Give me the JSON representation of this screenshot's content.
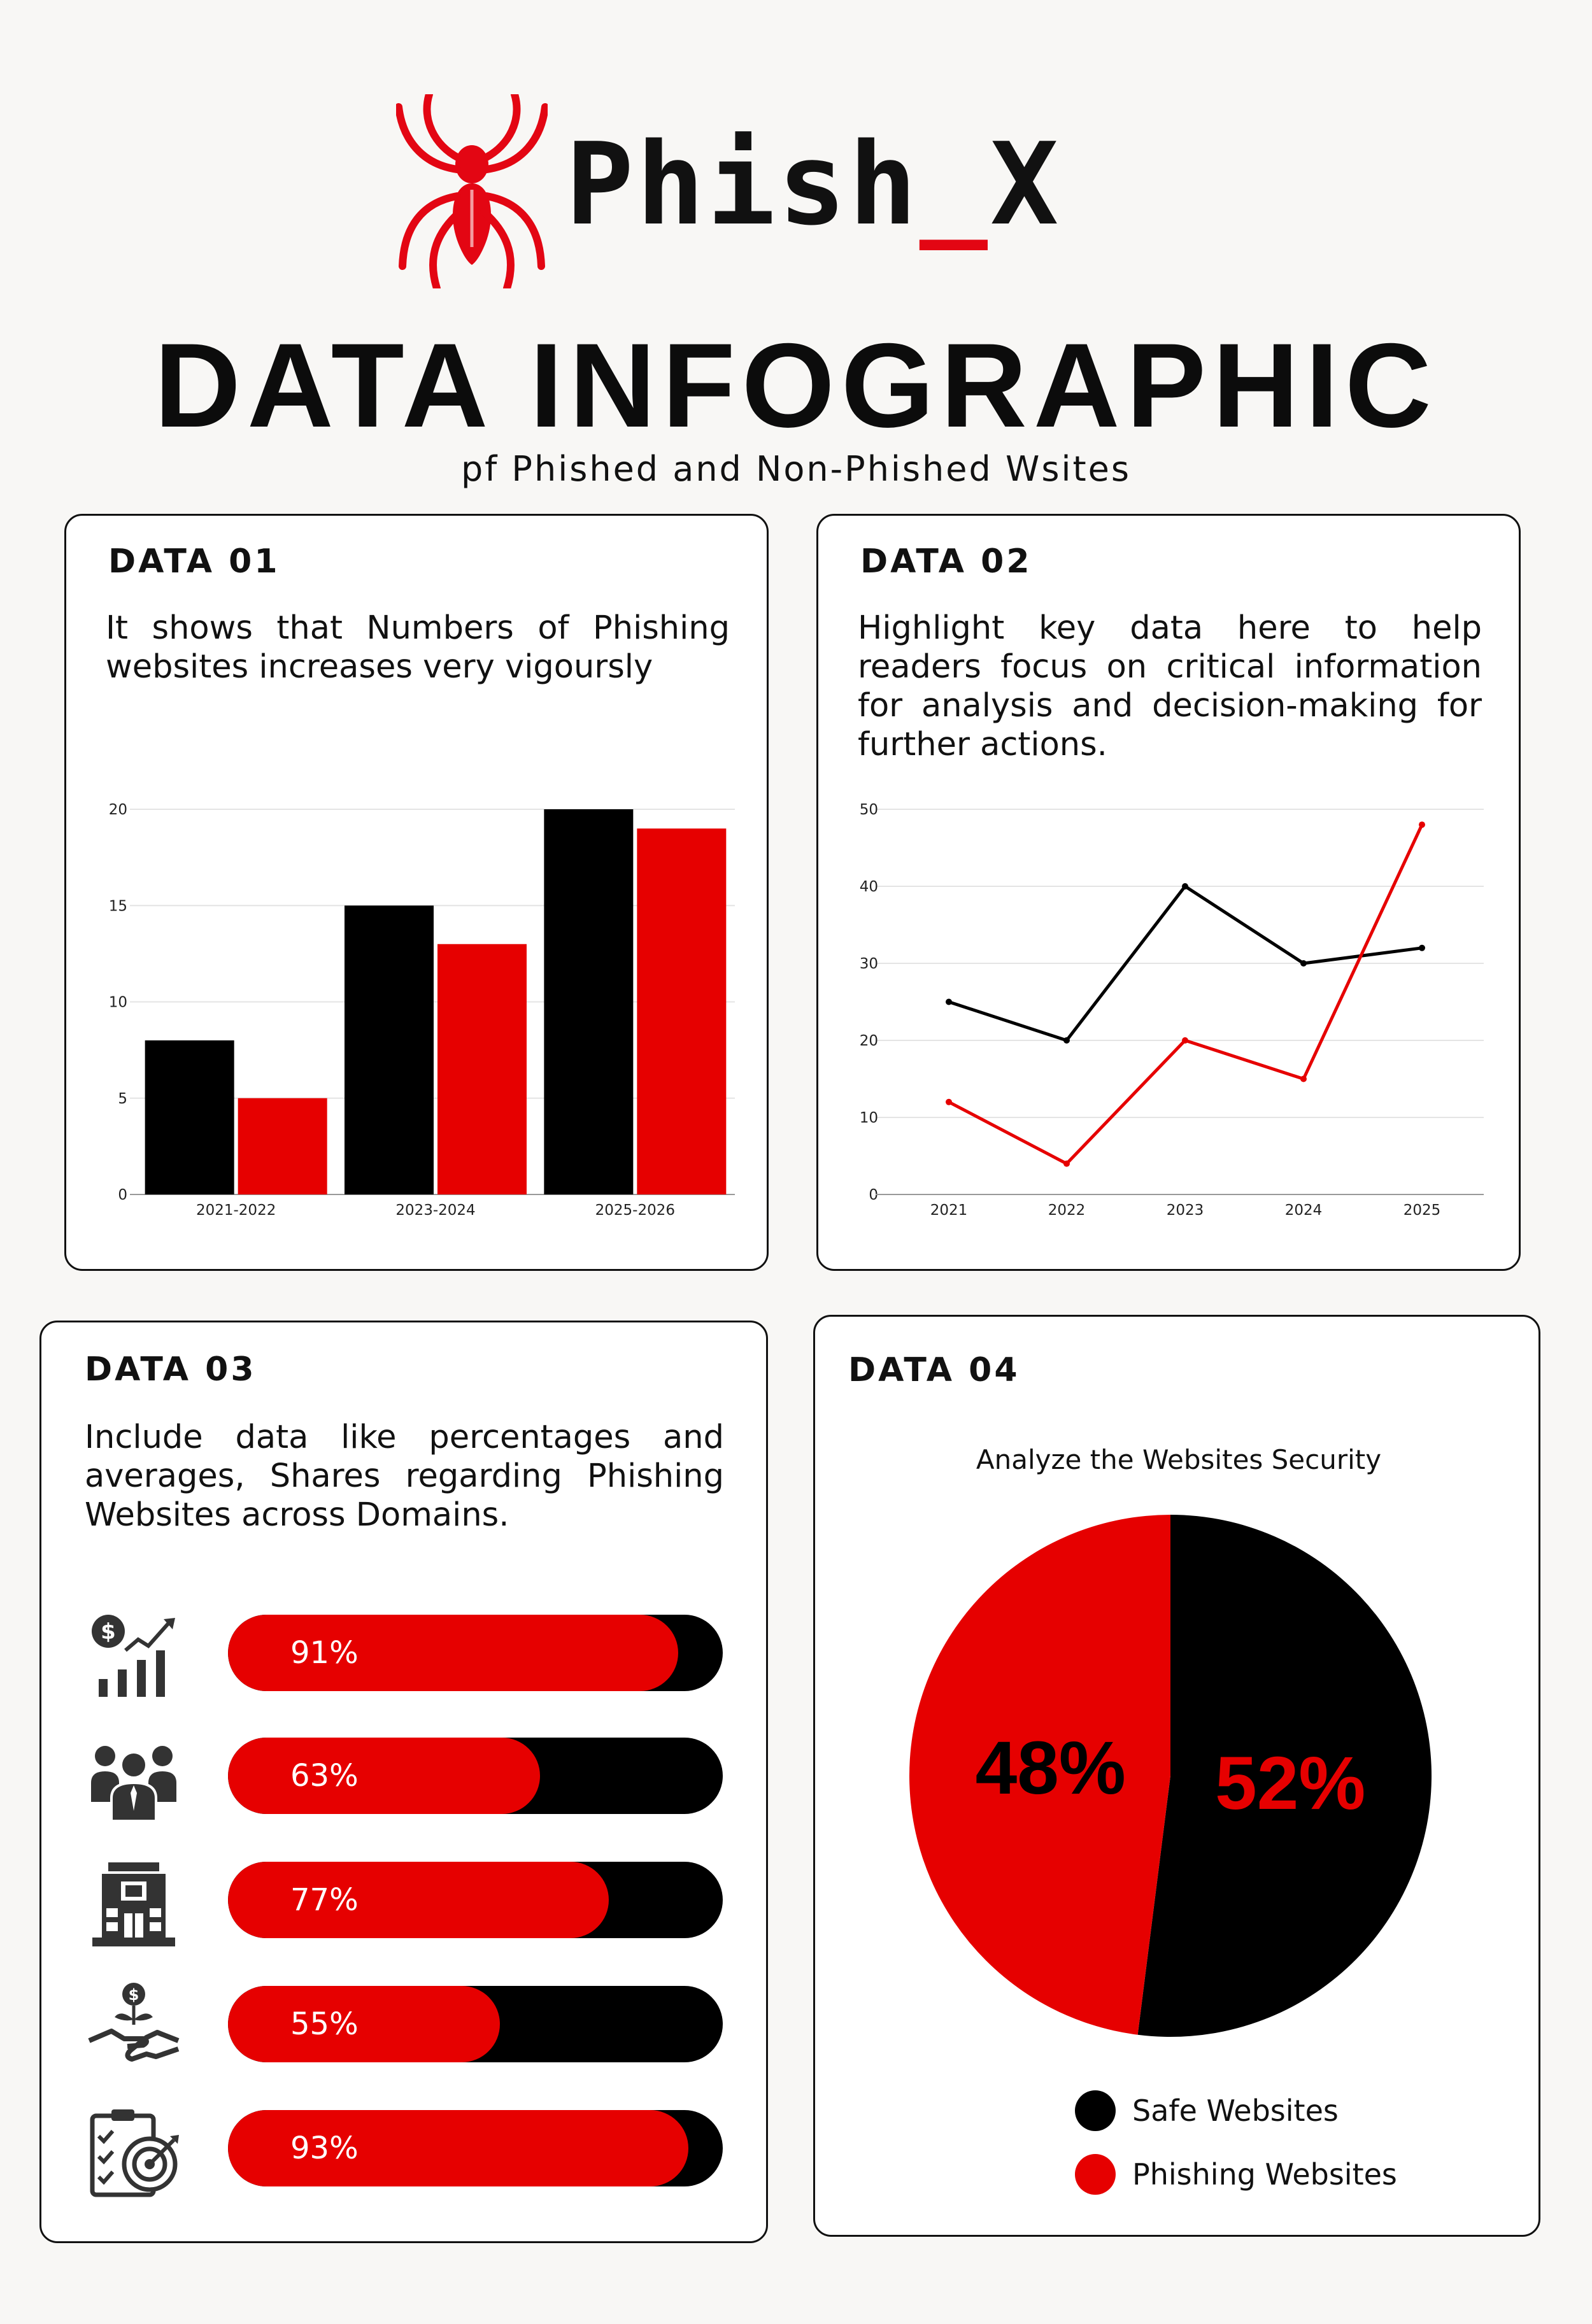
{
  "brand": {
    "name_main": "Phish",
    "name_underscore": "_",
    "name_x": "X",
    "logo_icon": "spider-icon",
    "accent": "#e30613"
  },
  "header": {
    "title": "DATA INFOGRAPHIC",
    "subtitle": "pf Phished and Non-Phished Wsites"
  },
  "cards": [
    {
      "title": "DATA 01",
      "description": "It shows that Numbers of Phishing websites increases very vigoursly"
    },
    {
      "title": "DATA 02",
      "description": "Highlight key data here to help readers focus on critical information for analysis and decision-making for further actions."
    },
    {
      "title": "DATA 03",
      "description": "Include data like percentages and averages, Shares regarding Phishing Websites across Domains."
    },
    {
      "title": "DATA 04"
    }
  ],
  "progress": [
    {
      "icon": "finance-growth-icon",
      "value": 91,
      "label": "91%"
    },
    {
      "icon": "team-people-icon",
      "value": 63,
      "label": "63%"
    },
    {
      "icon": "building-icon",
      "value": 77,
      "label": "77%"
    },
    {
      "icon": "handshake-money-icon",
      "value": 55,
      "label": "55%"
    },
    {
      "icon": "checklist-target-icon",
      "value": 93,
      "label": "93%"
    }
  ],
  "chart_data": [
    {
      "type": "bar",
      "categories": [
        "2021-2022",
        "2023-2024",
        "2025-2026"
      ],
      "series": [
        {
          "values": [
            8,
            15,
            20
          ],
          "color": "#000000"
        },
        {
          "values": [
            5,
            13,
            19
          ],
          "color": "#e60000"
        }
      ],
      "yticks": [
        "0",
        "5",
        "10",
        "15",
        "20"
      ],
      "ylim": [
        0,
        20
      ],
      "grid": true
    },
    {
      "type": "line",
      "x": [
        "2021",
        "2022",
        "2023",
        "2024",
        "2025"
      ],
      "series": [
        {
          "values": [
            25,
            20,
            40,
            30,
            32
          ],
          "color": "#000000"
        },
        {
          "values": [
            12,
            4,
            20,
            15,
            48
          ],
          "color": "#e60000"
        }
      ],
      "yticks": [
        "0",
        "10",
        "20",
        "30",
        "40",
        "50"
      ],
      "ylim": [
        0,
        50
      ],
      "grid": true
    },
    {
      "type": "pie",
      "title": "Analyze the Websites Security",
      "slices": [
        {
          "name": "Safe Websites",
          "value": 52,
          "label": "52%",
          "color": "#000000",
          "label_color": "#e60000"
        },
        {
          "name": "Phishing Websites",
          "value": 48,
          "label": "48%",
          "color": "#e60000",
          "label_color": "#000000"
        }
      ],
      "legend_position": "bottom"
    }
  ]
}
